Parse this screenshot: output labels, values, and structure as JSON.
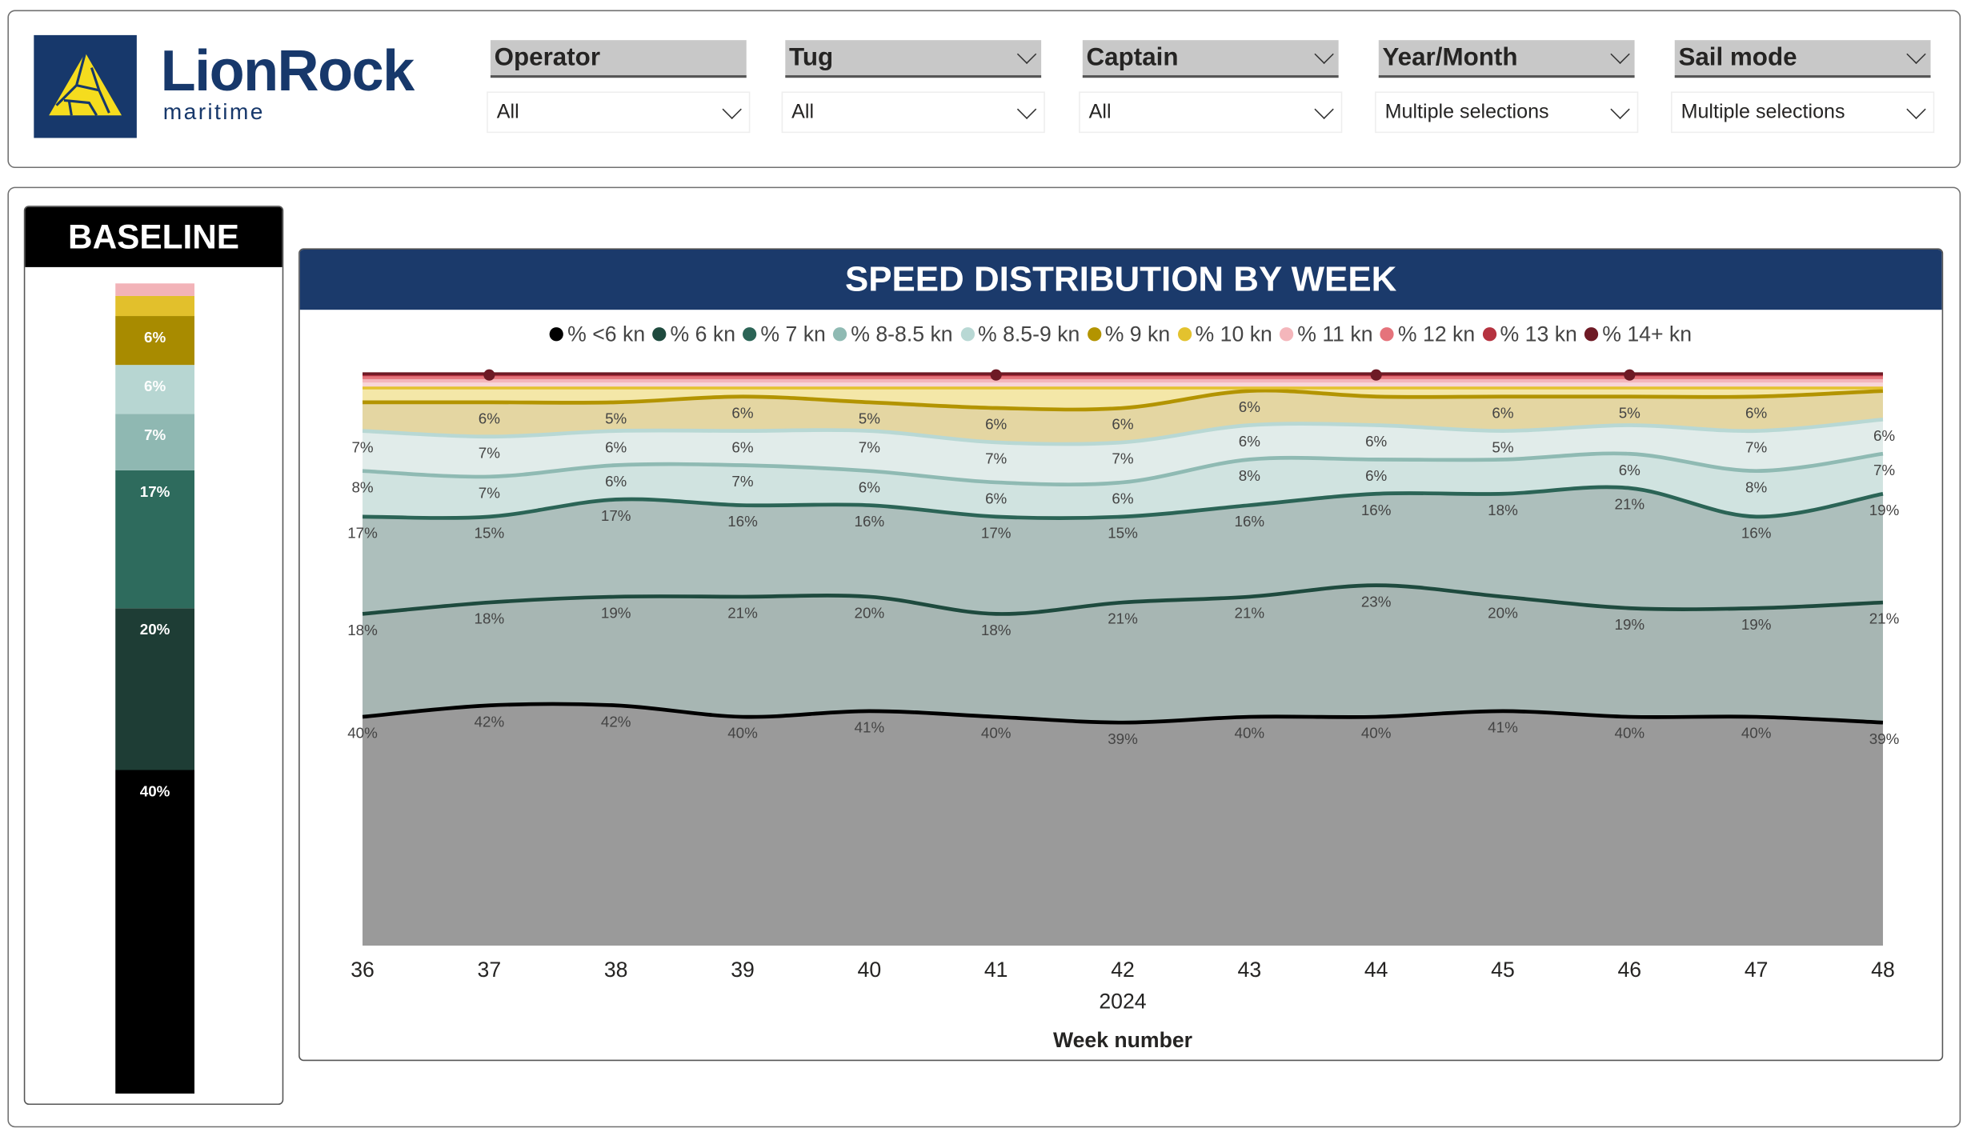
{
  "brand": {
    "name": "LionRock",
    "sub": "maritime",
    "navy": "#17386b",
    "yellow": "#f5dc1e"
  },
  "filters": [
    {
      "label": "Operator",
      "value": "All"
    },
    {
      "label": "Tug",
      "value": "All"
    },
    {
      "label": "Captain",
      "value": "All"
    },
    {
      "label": "Year/Month",
      "value": "Multiple selections"
    },
    {
      "label": "Sail mode",
      "value": "Multiple selections"
    }
  ],
  "baseline": {
    "title": "BASELINE",
    "segments": [
      {
        "series": "% <6 kn",
        "value": 40,
        "label": "40%",
        "color": "#000000"
      },
      {
        "series": "% 6 kn",
        "value": 20,
        "label": "20%",
        "color": "#1e3d35"
      },
      {
        "series": "% 7 kn",
        "value": 17,
        "label": "17%",
        "color": "#2e6b5d"
      },
      {
        "series": "% 8-8.5 kn",
        "value": 7,
        "label": "7%",
        "color": "#8fb8b2"
      },
      {
        "series": "% 8.5-9 kn",
        "value": 6,
        "label": "6%",
        "color": "#b7d6d2"
      },
      {
        "series": "% 9 kn",
        "value": 6,
        "label": "6%",
        "color": "#a88b00"
      },
      {
        "series": "% 10 kn",
        "value": 2.6,
        "label": "",
        "color": "#e2c02c"
      },
      {
        "series": "% 11 kn",
        "value": 1.5,
        "label": "",
        "color": "#f2b3b8"
      }
    ]
  },
  "chart_data": {
    "type": "area",
    "stacked": true,
    "title": "SPEED DISTRIBUTION BY WEEK",
    "xlabel": "Week number",
    "x_group_label": "2024",
    "legend_position": "top",
    "ylim": [
      0,
      100
    ],
    "categories": [
      "36",
      "37",
      "38",
      "39",
      "40",
      "41",
      "42",
      "43",
      "44",
      "45",
      "46",
      "47",
      "48"
    ],
    "series": [
      {
        "name": "% <6 kn",
        "color": "#000000",
        "fill": "#9a9a9a",
        "values": [
          40,
          42,
          42,
          40,
          41,
          40,
          39,
          40,
          40,
          41,
          40,
          40,
          39
        ],
        "labels": [
          "40%",
          "42%",
          "42%",
          "40%",
          "41%",
          "40%",
          "39%",
          "40%",
          "40%",
          "41%",
          "40%",
          "40%",
          "39%"
        ]
      },
      {
        "name": "% 6 kn",
        "color": "#1e4a3e",
        "fill": "#a7b6b3",
        "values": [
          18,
          18,
          19,
          21,
          20,
          18,
          21,
          21,
          23,
          20,
          19,
          19,
          21
        ],
        "labels": [
          "18%",
          "18%",
          "19%",
          "21%",
          "20%",
          "18%",
          "21%",
          "21%",
          "23%",
          "20%",
          "19%",
          "19%",
          "21%"
        ]
      },
      {
        "name": "% 7 kn",
        "color": "#2b6456",
        "fill": "#adbfbc",
        "values": [
          17,
          15,
          17,
          16,
          16,
          17,
          15,
          16,
          16,
          18,
          21,
          16,
          19
        ],
        "labels": [
          "17%",
          "15%",
          "17%",
          "16%",
          "16%",
          "17%",
          "15%",
          "16%",
          "16%",
          "18%",
          "21%",
          "16%",
          "19%"
        ]
      },
      {
        "name": "% 8-8.5 kn",
        "color": "#8fbab3",
        "fill": "#d0e3e0",
        "values": [
          8,
          7,
          6,
          7,
          6,
          6,
          6,
          8,
          6,
          6,
          6,
          8,
          7
        ],
        "labels": [
          "8%",
          "7%",
          "6%",
          "7%",
          "6%",
          "6%",
          "6%",
          "8%",
          "6%",
          null,
          "6%",
          "8%",
          "7%"
        ]
      },
      {
        "name": "% 8.5-9 kn",
        "color": "#b8d8d4",
        "fill": "#e1ecea",
        "values": [
          7,
          7,
          6,
          6,
          7,
          7,
          7,
          6,
          6,
          5,
          5,
          7,
          6
        ],
        "labels": [
          "7%",
          "7%",
          "6%",
          "6%",
          "7%",
          "7%",
          "7%",
          "6%",
          "6%",
          "5%",
          null,
          "7%",
          "6%"
        ]
      },
      {
        "name": "% 9 kn",
        "color": "#b39400",
        "fill": "#e4d6a2",
        "values": [
          5,
          6,
          5,
          6,
          5,
          6,
          6,
          6,
          5,
          6,
          5,
          6,
          5
        ],
        "labels": [
          null,
          "6%",
          "5%",
          "6%",
          "5%",
          "6%",
          "6%",
          "6%",
          null,
          "6%",
          "5%",
          "6%",
          null
        ]
      },
      {
        "name": "% 10 kn",
        "color": "#e3c22e",
        "fill": "#f4e7a8",
        "values": [
          2.5,
          2.5,
          2.5,
          1.5,
          2.5,
          3.5,
          3.5,
          0.5,
          1.5,
          1.5,
          1.5,
          1.5,
          0.5
        ],
        "labels": []
      },
      {
        "name": "% 11 kn",
        "color": "#f4b6bb",
        "fill": "#f8d6d8",
        "values": [
          1.2,
          1.2,
          1.2,
          1.2,
          1.2,
          1.2,
          1.2,
          1.2,
          1.2,
          1.2,
          1.2,
          1.2,
          1.2
        ],
        "labels": []
      },
      {
        "name": "% 12 kn",
        "color": "#e5737b",
        "fill": "#f1b3b7",
        "values": [
          0.6,
          0.6,
          0.6,
          0.6,
          0.6,
          0.6,
          0.6,
          0.6,
          0.6,
          0.6,
          0.6,
          0.6,
          0.6
        ],
        "labels": []
      },
      {
        "name": "% 13 kn",
        "color": "#b5323f",
        "fill": "#d88d94",
        "values": [
          0.5,
          0.5,
          0.5,
          0.5,
          0.5,
          0.5,
          0.5,
          0.5,
          0.5,
          0.5,
          0.5,
          0.5,
          0.5
        ],
        "labels": []
      },
      {
        "name": "% 14+ kn",
        "color": "#6e1a25",
        "fill": "#b07a80",
        "values": [
          0.2,
          0.2,
          0.2,
          0.2,
          0.2,
          0.2,
          0.2,
          0.2,
          0.2,
          0.2,
          0.2,
          0.2,
          0.2
        ],
        "labels": [],
        "markers": [
          "37",
          "41",
          "44",
          "46"
        ]
      }
    ]
  }
}
